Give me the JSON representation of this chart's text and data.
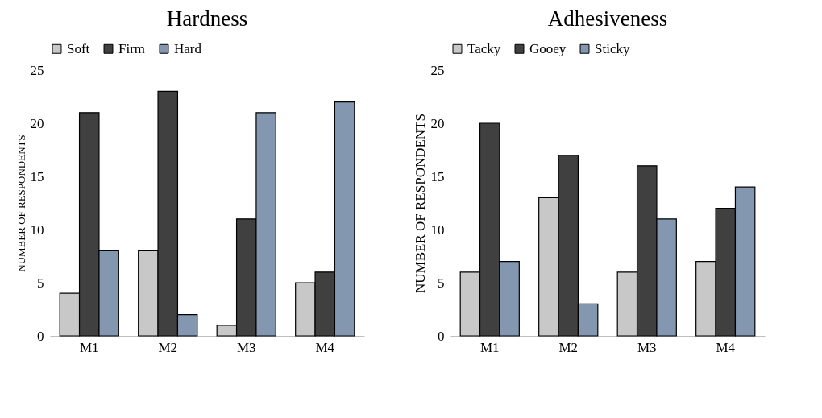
{
  "chart_data": [
    {
      "type": "bar",
      "title": "Hardness",
      "ylabel": "NUMBER OF RESPONDENTS",
      "categories": [
        "M1",
        "M2",
        "M3",
        "M4"
      ],
      "series": [
        {
          "name": "Soft",
          "color": "#c8c8c8",
          "values": [
            4,
            8,
            1,
            5
          ]
        },
        {
          "name": "Firm",
          "color": "#404040",
          "values": [
            21,
            23,
            11,
            6
          ]
        },
        {
          "name": "Hard",
          "color": "#8497b0",
          "values": [
            8,
            2,
            21,
            22
          ]
        }
      ],
      "ylim": [
        0,
        25
      ],
      "yticks": [
        0,
        5,
        10,
        15,
        20,
        25
      ],
      "grid": false,
      "legend": "top"
    },
    {
      "type": "bar",
      "title": "Adhesiveness",
      "ylabel": "NUMBER OF RESPONDENTS",
      "categories": [
        "M1",
        "M2",
        "M3",
        "M4"
      ],
      "series": [
        {
          "name": "Tacky",
          "color": "#c8c8c8",
          "values": [
            6,
            13,
            6,
            7
          ]
        },
        {
          "name": "Gooey",
          "color": "#404040",
          "values": [
            20,
            17,
            16,
            12
          ]
        },
        {
          "name": "Sticky",
          "color": "#8497b0",
          "values": [
            7,
            3,
            11,
            14
          ]
        }
      ],
      "ylim": [
        0,
        25
      ],
      "yticks": [
        0,
        5,
        10,
        15,
        20,
        25
      ],
      "grid": false,
      "legend": "top"
    }
  ]
}
